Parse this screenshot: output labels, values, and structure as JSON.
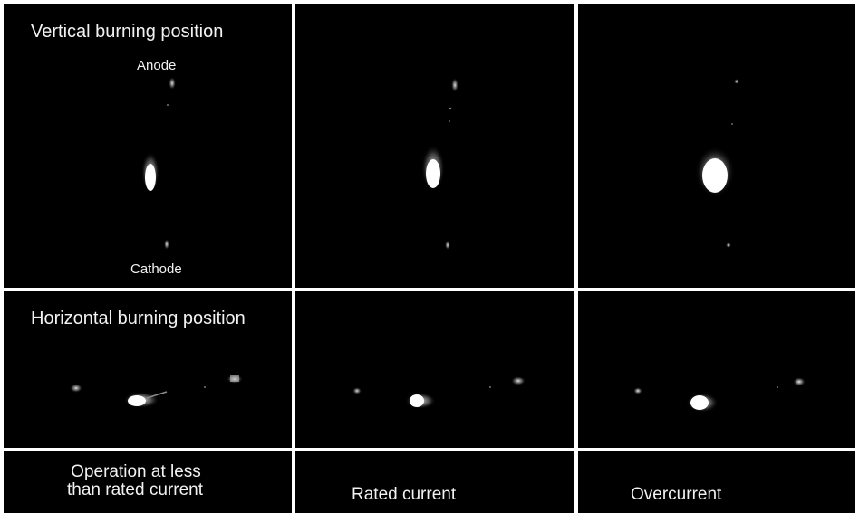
{
  "rows": {
    "vertical_title": "Vertical burning position",
    "horizontal_title": "Horizontal burning position"
  },
  "electrodes": {
    "anode": "Anode",
    "cathode": "Cathode"
  },
  "captions": {
    "low_line1": "Operation at less",
    "low_line2": "than rated current",
    "rated": "Rated current",
    "over": "Overcurrent"
  },
  "colors": {
    "background": "#000000",
    "divider": "#ffffff",
    "text": "#f2f2f2",
    "arc_core": "#ffffff",
    "arc_glow": "#9a9a9a"
  }
}
